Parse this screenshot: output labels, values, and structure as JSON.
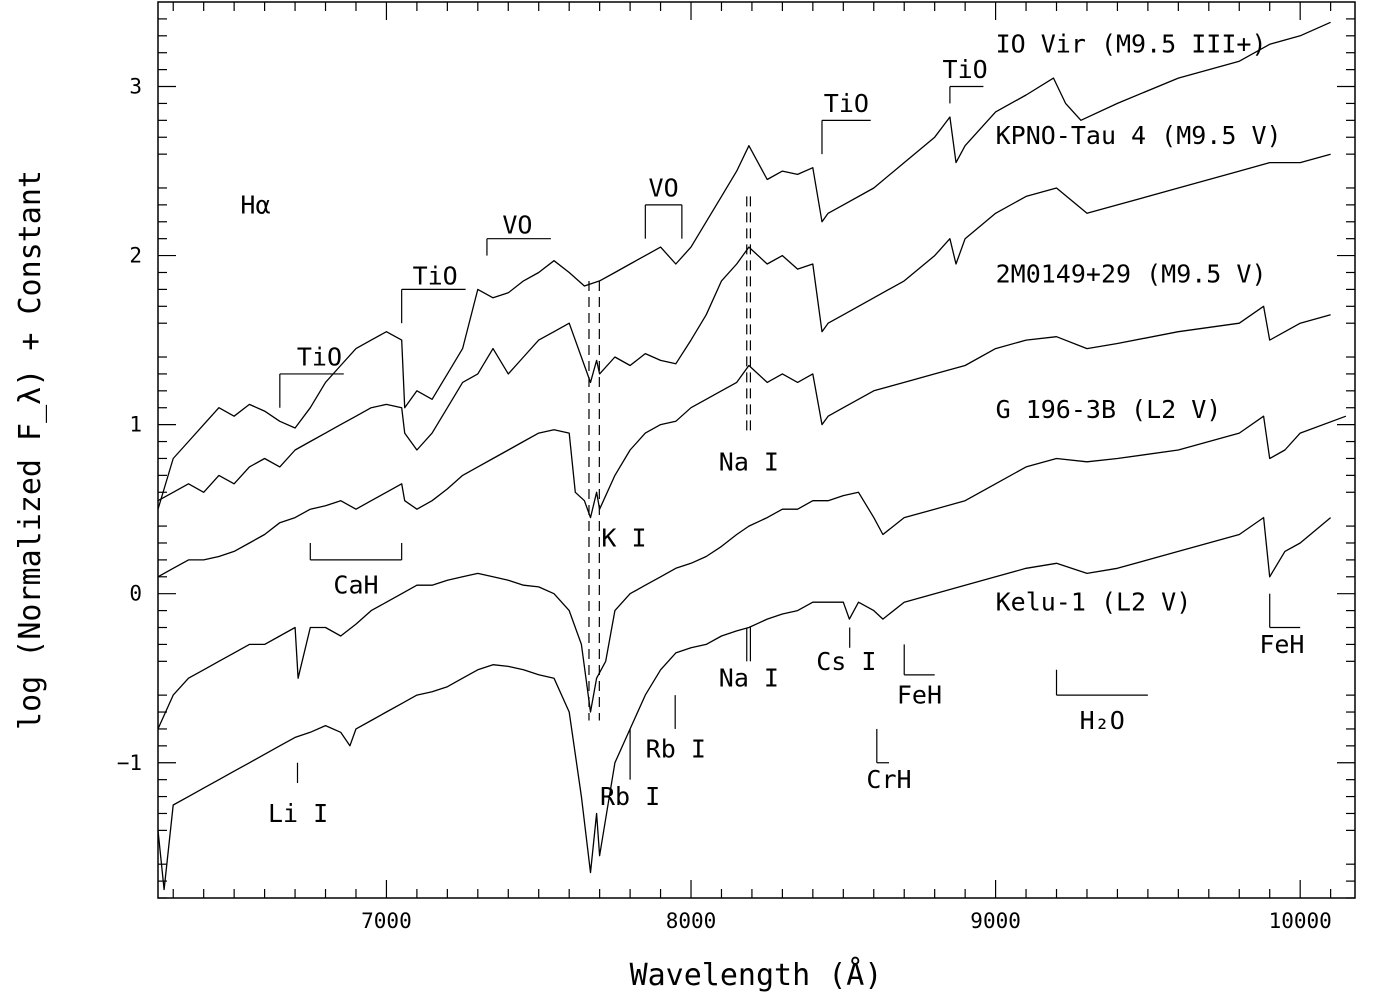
{
  "chart_data": {
    "type": "line",
    "title": "",
    "xlabel": "Wavelength (Å)",
    "ylabel": "log (Normalized F_λ) + Constant",
    "xlim": [
      6250,
      10180
    ],
    "ylim": [
      -1.8,
      3.5
    ],
    "x_ticks": [
      7000,
      8000,
      9000,
      10000
    ],
    "y_ticks": [
      -1,
      0,
      1,
      2,
      3
    ],
    "grid": false,
    "legend": "none",
    "series": [
      {
        "name": "IO Vir (M9.5 III+)",
        "label_pos": [
          9000,
          3.2
        ],
        "x": [
          6250,
          6300,
          6350,
          6400,
          6450,
          6500,
          6550,
          6600,
          6650,
          6700,
          6750,
          6800,
          6850,
          6900,
          6950,
          7000,
          7050,
          7060,
          7100,
          7150,
          7200,
          7250,
          7300,
          7350,
          7400,
          7450,
          7500,
          7550,
          7600,
          7650,
          7700,
          7750,
          7800,
          7850,
          7900,
          7950,
          8000,
          8050,
          8100,
          8150,
          8190,
          8250,
          8300,
          8350,
          8400,
          8430,
          8450,
          8500,
          8600,
          8700,
          8800,
          8850,
          8870,
          8900,
          9000,
          9100,
          9190,
          9230,
          9280,
          9400,
          9600,
          9800,
          9900,
          10000,
          10100
        ],
        "y": [
          0.5,
          0.8,
          0.9,
          1.0,
          1.1,
          1.05,
          1.12,
          1.08,
          1.02,
          0.98,
          1.1,
          1.25,
          1.35,
          1.45,
          1.5,
          1.55,
          1.5,
          1.1,
          1.2,
          1.15,
          1.3,
          1.45,
          1.8,
          1.75,
          1.78,
          1.85,
          1.9,
          1.97,
          1.9,
          1.82,
          1.85,
          1.9,
          1.95,
          2.0,
          2.05,
          1.95,
          2.05,
          2.2,
          2.35,
          2.5,
          2.65,
          2.45,
          2.5,
          2.48,
          2.52,
          2.2,
          2.25,
          2.3,
          2.4,
          2.55,
          2.7,
          2.82,
          2.55,
          2.65,
          2.85,
          2.95,
          3.05,
          2.9,
          2.8,
          2.9,
          3.05,
          3.15,
          3.25,
          3.3,
          3.38
        ]
      },
      {
        "name": "KPNO-Tau 4 (M9.5 V)",
        "label_pos": [
          9000,
          2.66
        ],
        "x": [
          6250,
          6300,
          6350,
          6400,
          6450,
          6500,
          6550,
          6600,
          6650,
          6700,
          6750,
          6800,
          6850,
          6900,
          6950,
          7000,
          7050,
          7060,
          7100,
          7150,
          7200,
          7250,
          7300,
          7350,
          7400,
          7450,
          7500,
          7550,
          7600,
          7650,
          7670,
          7690,
          7700,
          7750,
          7800,
          7850,
          7900,
          7950,
          8000,
          8050,
          8100,
          8150,
          8190,
          8250,
          8300,
          8350,
          8400,
          8430,
          8450,
          8500,
          8600,
          8700,
          8800,
          8850,
          8870,
          8900,
          9000,
          9100,
          9200,
          9300,
          9400,
          9600,
          9800,
          9900,
          10000,
          10100
        ],
        "y": [
          0.55,
          0.6,
          0.65,
          0.6,
          0.7,
          0.65,
          0.75,
          0.8,
          0.75,
          0.85,
          0.9,
          0.95,
          1.0,
          1.05,
          1.1,
          1.12,
          1.1,
          0.95,
          0.85,
          0.95,
          1.1,
          1.25,
          1.3,
          1.45,
          1.3,
          1.4,
          1.5,
          1.55,
          1.6,
          1.35,
          1.25,
          1.38,
          1.3,
          1.4,
          1.35,
          1.42,
          1.38,
          1.36,
          1.5,
          1.65,
          1.85,
          1.95,
          2.05,
          1.95,
          2.0,
          1.92,
          1.95,
          1.55,
          1.6,
          1.65,
          1.75,
          1.85,
          2.0,
          2.1,
          1.95,
          2.1,
          2.25,
          2.35,
          2.4,
          2.25,
          2.3,
          2.4,
          2.5,
          2.55,
          2.55,
          2.6
        ]
      },
      {
        "name": "2M0149+29 (M9.5 V)",
        "label_pos": [
          9000,
          1.84
        ],
        "x": [
          6250,
          6300,
          6350,
          6400,
          6450,
          6500,
          6550,
          6600,
          6650,
          6700,
          6750,
          6800,
          6850,
          6900,
          6950,
          7000,
          7050,
          7060,
          7100,
          7150,
          7200,
          7250,
          7300,
          7350,
          7400,
          7450,
          7500,
          7550,
          7600,
          7620,
          7650,
          7670,
          7690,
          7700,
          7750,
          7800,
          7850,
          7900,
          7950,
          8000,
          8050,
          8100,
          8150,
          8190,
          8250,
          8300,
          8350,
          8400,
          8430,
          8450,
          8500,
          8600,
          8700,
          8800,
          8900,
          9000,
          9100,
          9200,
          9300,
          9400,
          9600,
          9800,
          9880,
          9900,
          9950,
          10000,
          10100
        ],
        "y": [
          0.1,
          0.15,
          0.2,
          0.2,
          0.22,
          0.25,
          0.3,
          0.35,
          0.42,
          0.45,
          0.5,
          0.52,
          0.55,
          0.5,
          0.55,
          0.6,
          0.65,
          0.55,
          0.5,
          0.55,
          0.62,
          0.7,
          0.75,
          0.8,
          0.85,
          0.9,
          0.95,
          0.97,
          0.95,
          0.6,
          0.55,
          0.45,
          0.6,
          0.5,
          0.7,
          0.85,
          0.95,
          1.0,
          1.02,
          1.1,
          1.15,
          1.2,
          1.25,
          1.35,
          1.25,
          1.3,
          1.25,
          1.3,
          1.0,
          1.05,
          1.1,
          1.2,
          1.25,
          1.3,
          1.35,
          1.45,
          1.5,
          1.52,
          1.45,
          1.48,
          1.55,
          1.6,
          1.7,
          1.5,
          1.55,
          1.6,
          1.65
        ]
      },
      {
        "name": "G 196-3B (L2 V)",
        "label_pos": [
          9000,
          1.04
        ],
        "x": [
          6250,
          6300,
          6350,
          6400,
          6450,
          6500,
          6550,
          6600,
          6650,
          6700,
          6710,
          6750,
          6800,
          6850,
          6900,
          6950,
          7000,
          7050,
          7100,
          7150,
          7200,
          7250,
          7300,
          7350,
          7400,
          7450,
          7500,
          7550,
          7600,
          7640,
          7670,
          7690,
          7720,
          7750,
          7800,
          7850,
          7900,
          7950,
          8000,
          8050,
          8100,
          8150,
          8190,
          8250,
          8300,
          8350,
          8400,
          8450,
          8500,
          8550,
          8600,
          8630,
          8700,
          8800,
          8900,
          9000,
          9100,
          9200,
          9300,
          9400,
          9600,
          9800,
          9880,
          9900,
          9950,
          10000,
          10150
        ],
        "y": [
          -0.8,
          -0.6,
          -0.5,
          -0.45,
          -0.4,
          -0.35,
          -0.3,
          -0.3,
          -0.25,
          -0.2,
          -0.5,
          -0.2,
          -0.2,
          -0.25,
          -0.18,
          -0.1,
          -0.05,
          0.0,
          0.05,
          0.05,
          0.08,
          0.1,
          0.12,
          0.1,
          0.08,
          0.05,
          0.04,
          0.0,
          -0.1,
          -0.3,
          -0.7,
          -0.5,
          -0.4,
          -0.1,
          0.0,
          0.05,
          0.1,
          0.15,
          0.18,
          0.22,
          0.28,
          0.35,
          0.4,
          0.45,
          0.5,
          0.5,
          0.55,
          0.55,
          0.58,
          0.6,
          0.45,
          0.35,
          0.45,
          0.5,
          0.55,
          0.65,
          0.75,
          0.8,
          0.78,
          0.8,
          0.85,
          0.95,
          1.05,
          0.8,
          0.85,
          0.95,
          1.05
        ]
      },
      {
        "name": "Kelu-1 (L2 V)",
        "label_pos": [
          9000,
          -0.1
        ],
        "x": [
          6250,
          6270,
          6300,
          6350,
          6400,
          6450,
          6500,
          6550,
          6600,
          6650,
          6700,
          6750,
          6800,
          6850,
          6880,
          6900,
          6950,
          7000,
          7050,
          7100,
          7150,
          7200,
          7250,
          7300,
          7350,
          7400,
          7450,
          7500,
          7550,
          7600,
          7640,
          7670,
          7690,
          7700,
          7750,
          7800,
          7850,
          7900,
          7950,
          8000,
          8050,
          8100,
          8150,
          8190,
          8250,
          8300,
          8350,
          8400,
          8450,
          8500,
          8520,
          8550,
          8600,
          8630,
          8700,
          8800,
          8900,
          9000,
          9100,
          9200,
          9300,
          9400,
          9600,
          9800,
          9880,
          9900,
          9950,
          10000,
          10100
        ],
        "y": [
          -1.4,
          -1.75,
          -1.25,
          -1.2,
          -1.15,
          -1.1,
          -1.05,
          -1.0,
          -0.95,
          -0.9,
          -0.85,
          -0.82,
          -0.78,
          -0.82,
          -0.9,
          -0.8,
          -0.75,
          -0.7,
          -0.65,
          -0.6,
          -0.58,
          -0.55,
          -0.5,
          -0.45,
          -0.42,
          -0.43,
          -0.45,
          -0.48,
          -0.5,
          -0.7,
          -1.2,
          -1.65,
          -1.3,
          -1.55,
          -1.0,
          -0.8,
          -0.6,
          -0.45,
          -0.35,
          -0.32,
          -0.3,
          -0.25,
          -0.22,
          -0.2,
          -0.15,
          -0.12,
          -0.1,
          -0.05,
          -0.05,
          -0.05,
          -0.15,
          -0.05,
          -0.1,
          -0.15,
          -0.05,
          0.0,
          0.05,
          0.1,
          0.15,
          0.18,
          0.12,
          0.15,
          0.25,
          0.35,
          0.45,
          0.1,
          0.25,
          0.3,
          0.45
        ]
      }
    ],
    "annotations": [
      {
        "text": "Hα",
        "x": 6570,
        "y": 2.25
      },
      {
        "text": "TiO",
        "x": 6780,
        "y": 1.35
      },
      {
        "text": "TiO",
        "x": 7160,
        "y": 1.83
      },
      {
        "text": "VO",
        "x": 7430,
        "y": 2.13
      },
      {
        "text": "VO",
        "x": 7910,
        "y": 2.35
      },
      {
        "text": "TiO",
        "x": 8510,
        "y": 2.85
      },
      {
        "text": "TiO",
        "x": 8900,
        "y": 3.05
      },
      {
        "text": "CaH",
        "x": 6900,
        "y": 0.0
      },
      {
        "text": "K I",
        "x": 7780,
        "y": 0.28
      },
      {
        "text": "Na I",
        "x": 8190,
        "y": 0.73
      },
      {
        "text": "Na I",
        "x": 8190,
        "y": -0.55
      },
      {
        "text": "Cs I",
        "x": 8510,
        "y": -0.45
      },
      {
        "text": "FeH",
        "x": 8750,
        "y": -0.65
      },
      {
        "text": "FeH",
        "x": 9940,
        "y": -0.35
      },
      {
        "text": "Rb I",
        "x": 7950,
        "y": -0.97
      },
      {
        "text": "Rb I",
        "x": 7800,
        "y": -1.25
      },
      {
        "text": "CrH",
        "x": 8650,
        "y": -1.15
      },
      {
        "text": "Li I",
        "x": 6710,
        "y": -1.35
      },
      {
        "text": "H₂O",
        "x": 9350,
        "y": -0.8
      }
    ]
  }
}
